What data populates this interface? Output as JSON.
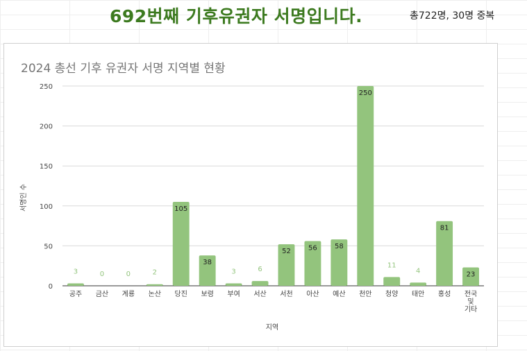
{
  "header": {
    "headline": "692번째 기후유권자 서명입니다.",
    "count_note": "총722명, 30명 중복"
  },
  "colors": {
    "headline": "#3c7a1f",
    "bar": "#93c47d",
    "label_inside": "#222222",
    "label_outside": "#93c47d"
  },
  "chart_data": {
    "type": "bar",
    "title": "2024 총선 기후 유권자 서명 지역별 현황",
    "xlabel": "지역",
    "ylabel": "서명인 수",
    "ylim": [
      0,
      250
    ],
    "yticks": [
      0,
      50,
      100,
      150,
      200,
      250
    ],
    "grid": true,
    "legend": "none",
    "categories": [
      "공주",
      "금산",
      "계룡",
      "논산",
      "당진",
      "보령",
      "부여",
      "서산",
      "서천",
      "아산",
      "예산",
      "천안",
      "청양",
      "태안",
      "홍성",
      "전국 및 기타"
    ],
    "category_lines": [
      [
        "공주"
      ],
      [
        "금산"
      ],
      [
        "계룡"
      ],
      [
        "논산"
      ],
      [
        "당진"
      ],
      [
        "보령"
      ],
      [
        "부여"
      ],
      [
        "서산"
      ],
      [
        "서천"
      ],
      [
        "아산"
      ],
      [
        "예산"
      ],
      [
        "천안"
      ],
      [
        "청양"
      ],
      [
        "태안"
      ],
      [
        "홍성"
      ],
      [
        "전국",
        "및",
        "기타"
      ]
    ],
    "values": [
      3,
      0,
      0,
      2,
      105,
      38,
      3,
      6,
      52,
      56,
      58,
      250,
      11,
      4,
      81,
      23
    ]
  }
}
